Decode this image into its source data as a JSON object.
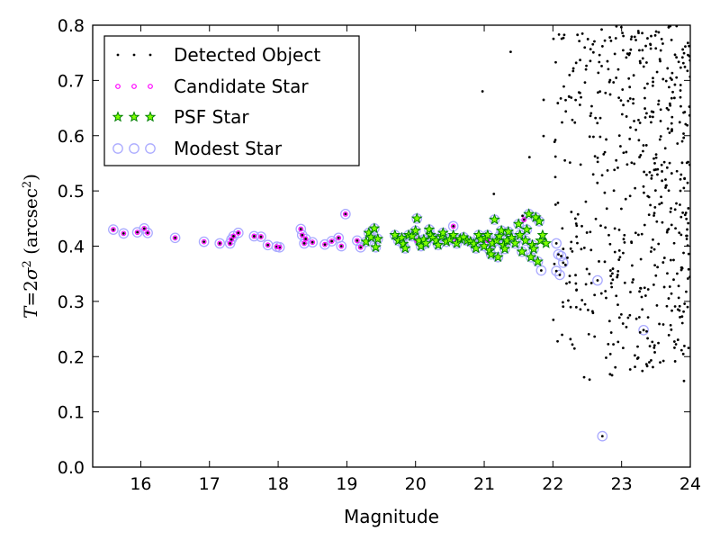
{
  "chart_data": {
    "type": "scatter",
    "xlabel": "Magnitude",
    "ylabel_parts": [
      "T",
      "=2",
      "σ",
      "2",
      " (arcsec",
      "2",
      ")"
    ],
    "xlim": [
      15.3,
      24
    ],
    "ylim": [
      0.0,
      0.8
    ],
    "x_ticks": [
      "16",
      "17",
      "18",
      "19",
      "20",
      "21",
      "22",
      "23",
      "24"
    ],
    "y_ticks": [
      "0.0",
      "0.1",
      "0.2",
      "0.3",
      "0.4",
      "0.5",
      "0.6",
      "0.7",
      "0.8"
    ],
    "grid": false,
    "legend_position": "upper-left",
    "colors": {
      "detected": "#000000",
      "candidate": "#ff00ff",
      "psf_fill": "#7fff00",
      "psf_edge": "#008000",
      "modest_edge": "#aaaaff"
    },
    "series": [
      {
        "name": "Detected Object",
        "marker": "dot",
        "cluster": [
          [
            15.6,
            0.43
          ],
          [
            15.75,
            0.423
          ],
          [
            15.95,
            0.425
          ],
          [
            16.05,
            0.432
          ],
          [
            16.1,
            0.424
          ],
          [
            16.5,
            0.415
          ],
          [
            16.92,
            0.408
          ],
          [
            17.15,
            0.405
          ],
          [
            17.3,
            0.405
          ],
          [
            17.32,
            0.412
          ],
          [
            17.35,
            0.418
          ],
          [
            17.42,
            0.424
          ],
          [
            17.65,
            0.418
          ],
          [
            17.75,
            0.417
          ],
          [
            17.85,
            0.402
          ],
          [
            17.98,
            0.399
          ],
          [
            18.02,
            0.398
          ],
          [
            18.33,
            0.431
          ],
          [
            18.35,
            0.42
          ],
          [
            18.38,
            0.405
          ],
          [
            18.4,
            0.413
          ],
          [
            18.5,
            0.407
          ],
          [
            18.68,
            0.403
          ],
          [
            18.78,
            0.409
          ],
          [
            18.88,
            0.415
          ],
          [
            18.92,
            0.4
          ],
          [
            18.98,
            0.458
          ],
          [
            19.15,
            0.41
          ],
          [
            19.2,
            0.398
          ],
          [
            20.02,
            0.41
          ],
          [
            20.55,
            0.436
          ],
          [
            20.6,
            0.41
          ],
          [
            21.05,
            0.41
          ],
          [
            21.58,
            0.448
          ],
          [
            21.83,
            0.356
          ],
          [
            22.05,
            0.405
          ],
          [
            22.05,
            0.355
          ],
          [
            22.08,
            0.385
          ],
          [
            22.1,
            0.348
          ],
          [
            22.12,
            0.382
          ],
          [
            22.15,
            0.37
          ],
          [
            22.15,
            0.395
          ],
          [
            22.65,
            0.338
          ],
          [
            22.72,
            0.056
          ],
          [
            23.32,
            0.248
          ]
        ],
        "scatter_region": {
          "x": [
            19.8,
            24.0
          ],
          "y": [
            0.15,
            0.8
          ],
          "count": 620,
          "note": "dense cloud of faint objects at magnitudes above ~22"
        }
      },
      {
        "name": "Candidate Star",
        "marker": "small-circle",
        "points": [
          [
            15.6,
            0.43
          ],
          [
            15.75,
            0.423
          ],
          [
            15.95,
            0.425
          ],
          [
            16.05,
            0.432
          ],
          [
            16.1,
            0.424
          ],
          [
            16.5,
            0.415
          ],
          [
            16.92,
            0.408
          ],
          [
            17.15,
            0.405
          ],
          [
            17.3,
            0.405
          ],
          [
            17.32,
            0.412
          ],
          [
            17.35,
            0.418
          ],
          [
            17.42,
            0.424
          ],
          [
            17.65,
            0.418
          ],
          [
            17.75,
            0.417
          ],
          [
            17.85,
            0.402
          ],
          [
            17.98,
            0.399
          ],
          [
            18.02,
            0.398
          ],
          [
            18.33,
            0.431
          ],
          [
            18.35,
            0.42
          ],
          [
            18.38,
            0.405
          ],
          [
            18.4,
            0.413
          ],
          [
            18.5,
            0.407
          ],
          [
            18.68,
            0.403
          ],
          [
            18.78,
            0.409
          ],
          [
            18.88,
            0.415
          ],
          [
            18.92,
            0.4
          ],
          [
            18.98,
            0.458
          ],
          [
            19.15,
            0.41
          ],
          [
            19.2,
            0.398
          ],
          [
            20.02,
            0.41
          ],
          [
            20.55,
            0.436
          ],
          [
            20.6,
            0.41
          ],
          [
            21.05,
            0.41
          ],
          [
            21.58,
            0.448
          ]
        ]
      },
      {
        "name": "PSF Star",
        "marker": "star",
        "points": [
          [
            19.28,
            0.408
          ],
          [
            19.32,
            0.424
          ],
          [
            19.35,
            0.416
          ],
          [
            19.4,
            0.432
          ],
          [
            19.42,
            0.398
          ],
          [
            19.45,
            0.413
          ],
          [
            19.7,
            0.42
          ],
          [
            19.75,
            0.41
          ],
          [
            19.8,
            0.415
          ],
          [
            19.82,
            0.404
          ],
          [
            19.85,
            0.396
          ],
          [
            19.9,
            0.42
          ],
          [
            19.95,
            0.418
          ],
          [
            20.0,
            0.428
          ],
          [
            20.02,
            0.45
          ],
          [
            20.05,
            0.41
          ],
          [
            20.08,
            0.4
          ],
          [
            20.12,
            0.412
          ],
          [
            20.15,
            0.405
          ],
          [
            20.2,
            0.43
          ],
          [
            20.22,
            0.42
          ],
          [
            20.25,
            0.415
          ],
          [
            20.3,
            0.41
          ],
          [
            20.33,
            0.402
          ],
          [
            20.38,
            0.418
          ],
          [
            20.4,
            0.424
          ],
          [
            20.45,
            0.408
          ],
          [
            20.5,
            0.412
          ],
          [
            20.55,
            0.42
          ],
          [
            20.6,
            0.405
          ],
          [
            20.65,
            0.413
          ],
          [
            20.7,
            0.416
          ],
          [
            20.75,
            0.41
          ],
          [
            20.8,
            0.408
          ],
          [
            20.85,
            0.404
          ],
          [
            20.88,
            0.396
          ],
          [
            20.92,
            0.42
          ],
          [
            20.95,
            0.412
          ],
          [
            21.0,
            0.4
          ],
          [
            21.02,
            0.415
          ],
          [
            21.05,
            0.42
          ],
          [
            21.08,
            0.392
          ],
          [
            21.1,
            0.385
          ],
          [
            21.12,
            0.405
          ],
          [
            21.15,
            0.448
          ],
          [
            21.18,
            0.41
          ],
          [
            21.2,
            0.38
          ],
          [
            21.22,
            0.418
          ],
          [
            21.25,
            0.428
          ],
          [
            21.28,
            0.402
          ],
          [
            21.3,
            0.395
          ],
          [
            21.33,
            0.41
          ],
          [
            21.35,
            0.426
          ],
          [
            21.4,
            0.415
          ],
          [
            21.45,
            0.405
          ],
          [
            21.5,
            0.44
          ],
          [
            21.52,
            0.42
          ],
          [
            21.55,
            0.39
          ],
          [
            21.6,
            0.41
          ],
          [
            21.62,
            0.43
          ],
          [
            21.65,
            0.458
          ],
          [
            21.68,
            0.38
          ],
          [
            21.7,
            0.402
          ],
          [
            21.72,
            0.395
          ],
          [
            21.75,
            0.452
          ],
          [
            21.78,
            0.372
          ],
          [
            21.8,
            0.445
          ],
          [
            21.82,
            0.41
          ],
          [
            21.85,
            0.42
          ],
          [
            21.9,
            0.405
          ]
        ]
      },
      {
        "name": "Modest Star",
        "marker": "open-circle",
        "points": [
          [
            15.6,
            0.43
          ],
          [
            15.75,
            0.423
          ],
          [
            15.95,
            0.425
          ],
          [
            16.05,
            0.432
          ],
          [
            16.1,
            0.424
          ],
          [
            16.5,
            0.415
          ],
          [
            16.92,
            0.408
          ],
          [
            17.15,
            0.405
          ],
          [
            17.3,
            0.405
          ],
          [
            17.32,
            0.412
          ],
          [
            17.35,
            0.418
          ],
          [
            17.42,
            0.424
          ],
          [
            17.65,
            0.418
          ],
          [
            17.75,
            0.417
          ],
          [
            17.85,
            0.402
          ],
          [
            17.98,
            0.399
          ],
          [
            18.02,
            0.398
          ],
          [
            18.33,
            0.431
          ],
          [
            18.35,
            0.42
          ],
          [
            18.38,
            0.405
          ],
          [
            18.4,
            0.413
          ],
          [
            18.5,
            0.407
          ],
          [
            18.68,
            0.403
          ],
          [
            18.78,
            0.409
          ],
          [
            18.88,
            0.415
          ],
          [
            18.92,
            0.4
          ],
          [
            18.98,
            0.458
          ],
          [
            19.15,
            0.41
          ],
          [
            19.2,
            0.398
          ],
          [
            19.28,
            0.408
          ],
          [
            19.32,
            0.424
          ],
          [
            19.35,
            0.416
          ],
          [
            19.4,
            0.432
          ],
          [
            19.42,
            0.398
          ],
          [
            19.45,
            0.413
          ],
          [
            19.7,
            0.42
          ],
          [
            19.75,
            0.41
          ],
          [
            19.8,
            0.415
          ],
          [
            19.82,
            0.404
          ],
          [
            19.85,
            0.396
          ],
          [
            19.9,
            0.42
          ],
          [
            19.95,
            0.418
          ],
          [
            20.0,
            0.428
          ],
          [
            20.02,
            0.45
          ],
          [
            20.05,
            0.41
          ],
          [
            20.08,
            0.4
          ],
          [
            20.12,
            0.412
          ],
          [
            20.15,
            0.405
          ],
          [
            20.2,
            0.43
          ],
          [
            20.22,
            0.42
          ],
          [
            20.25,
            0.415
          ],
          [
            20.3,
            0.41
          ],
          [
            20.33,
            0.402
          ],
          [
            20.38,
            0.418
          ],
          [
            20.4,
            0.424
          ],
          [
            20.45,
            0.408
          ],
          [
            20.5,
            0.412
          ],
          [
            20.55,
            0.436
          ],
          [
            20.6,
            0.405
          ],
          [
            20.65,
            0.413
          ],
          [
            20.7,
            0.416
          ],
          [
            20.75,
            0.41
          ],
          [
            20.8,
            0.408
          ],
          [
            20.85,
            0.404
          ],
          [
            20.88,
            0.396
          ],
          [
            20.92,
            0.42
          ],
          [
            20.95,
            0.412
          ],
          [
            21.0,
            0.4
          ],
          [
            21.02,
            0.415
          ],
          [
            21.05,
            0.42
          ],
          [
            21.08,
            0.392
          ],
          [
            21.1,
            0.385
          ],
          [
            21.12,
            0.405
          ],
          [
            21.15,
            0.448
          ],
          [
            21.18,
            0.41
          ],
          [
            21.2,
            0.38
          ],
          [
            21.22,
            0.418
          ],
          [
            21.25,
            0.428
          ],
          [
            21.28,
            0.402
          ],
          [
            21.3,
            0.395
          ],
          [
            21.33,
            0.41
          ],
          [
            21.35,
            0.426
          ],
          [
            21.4,
            0.415
          ],
          [
            21.45,
            0.405
          ],
          [
            21.5,
            0.44
          ],
          [
            21.52,
            0.42
          ],
          [
            21.55,
            0.39
          ],
          [
            21.6,
            0.41
          ],
          [
            21.62,
            0.43
          ],
          [
            21.65,
            0.458
          ],
          [
            21.68,
            0.38
          ],
          [
            21.7,
            0.402
          ],
          [
            21.72,
            0.395
          ],
          [
            21.75,
            0.452
          ],
          [
            21.78,
            0.372
          ],
          [
            21.8,
            0.445
          ],
          [
            21.83,
            0.356
          ],
          [
            22.05,
            0.405
          ],
          [
            22.05,
            0.355
          ],
          [
            22.08,
            0.385
          ],
          [
            22.1,
            0.348
          ],
          [
            22.12,
            0.382
          ],
          [
            22.15,
            0.37
          ],
          [
            22.65,
            0.338
          ],
          [
            22.72,
            0.056
          ],
          [
            23.32,
            0.248
          ]
        ]
      }
    ]
  }
}
